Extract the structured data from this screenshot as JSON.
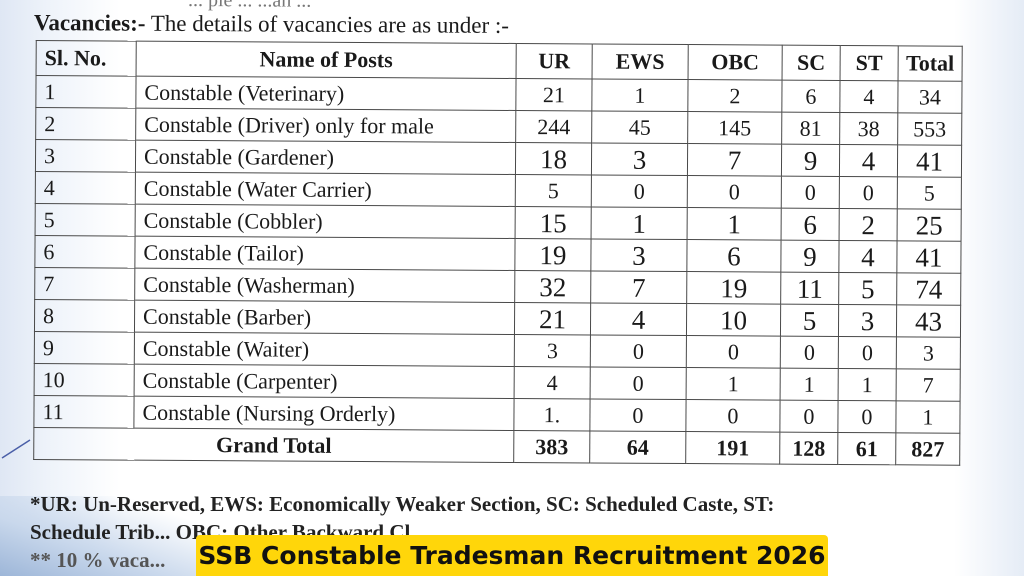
{
  "top_partial_text": "... ple ...            ...an ...",
  "heading": {
    "bold": "Vacancies:-",
    "text": " The details of vacancies are as under :-"
  },
  "table": {
    "headers": [
      "Sl. No.",
      "Name of Posts",
      "UR",
      "EWS",
      "OBC",
      "SC",
      "ST",
      "Total"
    ],
    "rows": [
      {
        "sl": "1",
        "post": "Constable (Veterinary)",
        "ur": "21",
        "ews": "1",
        "obc": "2",
        "sc": "6",
        "st": "4",
        "total": "34"
      },
      {
        "sl": "2",
        "post": "Constable (Driver) only for male",
        "ur": "244",
        "ews": "45",
        "obc": "145",
        "sc": "81",
        "st": "38",
        "total": "553"
      },
      {
        "sl": "3",
        "post": "Constable (Gardener)",
        "ur": "18",
        "ews": "3",
        "obc": "7",
        "sc": "9",
        "st": "4",
        "total": "41"
      },
      {
        "sl": "4",
        "post": "Constable (Water Carrier)",
        "ur": "5",
        "ews": "0",
        "obc": "0",
        "sc": "0",
        "st": "0",
        "total": "5"
      },
      {
        "sl": "5",
        "post": "Constable (Cobbler)",
        "ur": "15",
        "ews": "1",
        "obc": "1",
        "sc": "6",
        "st": "2",
        "total": "25"
      },
      {
        "sl": "6",
        "post": "Constable (Tailor)",
        "ur": "19",
        "ews": "3",
        "obc": "6",
        "sc": "9",
        "st": "4",
        "total": "41"
      },
      {
        "sl": "7",
        "post": "Constable (Washerman)",
        "ur": "32",
        "ews": "7",
        "obc": "19",
        "sc": "11",
        "st": "5",
        "total": "74"
      },
      {
        "sl": "8",
        "post": "Constable (Barber)",
        "ur": "21",
        "ews": "4",
        "obc": "10",
        "sc": "5",
        "st": "3",
        "total": "43"
      },
      {
        "sl": "9",
        "post": "Constable (Waiter)",
        "ur": "3",
        "ews": "0",
        "obc": "0",
        "sc": "0",
        "st": "0",
        "total": "3"
      },
      {
        "sl": "10",
        "post": "Constable (Carpenter)",
        "ur": "4",
        "ews": "0",
        "obc": "1",
        "sc": "1",
        "st": "1",
        "total": "7"
      },
      {
        "sl": "11",
        "post": "Constable (Nursing Orderly)",
        "ur": "1.",
        "ews": "0",
        "obc": "0",
        "sc": "0",
        "st": "0",
        "total": "1"
      }
    ],
    "grand_total": {
      "label": "Grand Total",
      "ur": "383",
      "ews": "64",
      "obc": "191",
      "sc": "128",
      "st": "61",
      "total": "827"
    }
  },
  "footnote": {
    "line1": "*UR: Un-Reserved, EWS: Economically Weaker Section, SC: Scheduled Caste, ST:",
    "line2": "Schedule Trib... OBC: Other Backward Cl...",
    "line3": "** 10 % vaca..."
  },
  "banner": {
    "text": "SSB Constable Tradesman Recruitment 2026",
    "color": "#ffd60a"
  }
}
